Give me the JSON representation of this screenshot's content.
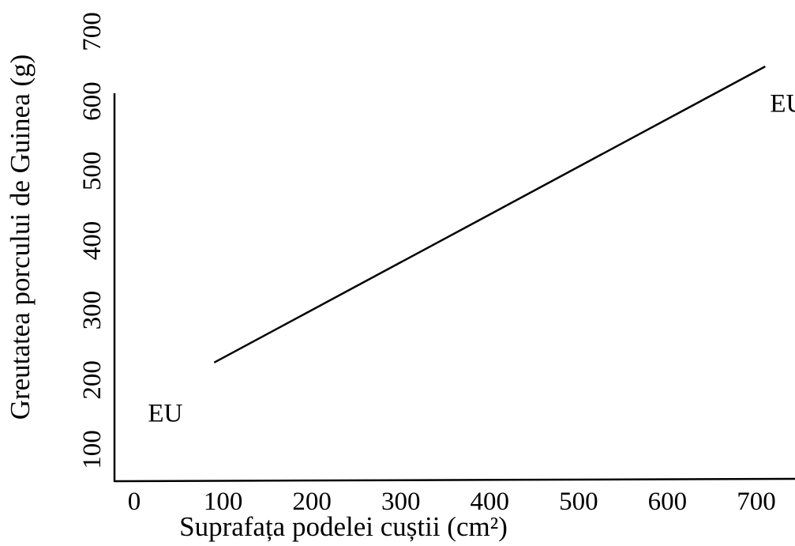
{
  "chart_data": {
    "type": "line",
    "xlabel": "Suprafața podelei cuștii (cm²)",
    "ylabel": "Greutatea porcului de Guinea (g)",
    "xlim": [
      0,
      750
    ],
    "ylim": [
      0,
      700
    ],
    "x_ticks": [
      "0",
      "100",
      "200",
      "300",
      "400",
      "500",
      "600",
      "700"
    ],
    "y_ticks": [
      "100",
      "200",
      "300",
      "400",
      "500",
      "600",
      "700"
    ],
    "grid": false,
    "series": [
      {
        "x": [
          90,
          710
        ],
        "y": [
          225,
          650
        ],
        "color": "#000000"
      }
    ],
    "annotations": [
      {
        "text": "EU",
        "x": 35,
        "y": 140
      },
      {
        "text": "EU",
        "x": 735,
        "y": 585
      }
    ]
  },
  "colors": {
    "ink": "#000000",
    "background": "#ffffff"
  }
}
